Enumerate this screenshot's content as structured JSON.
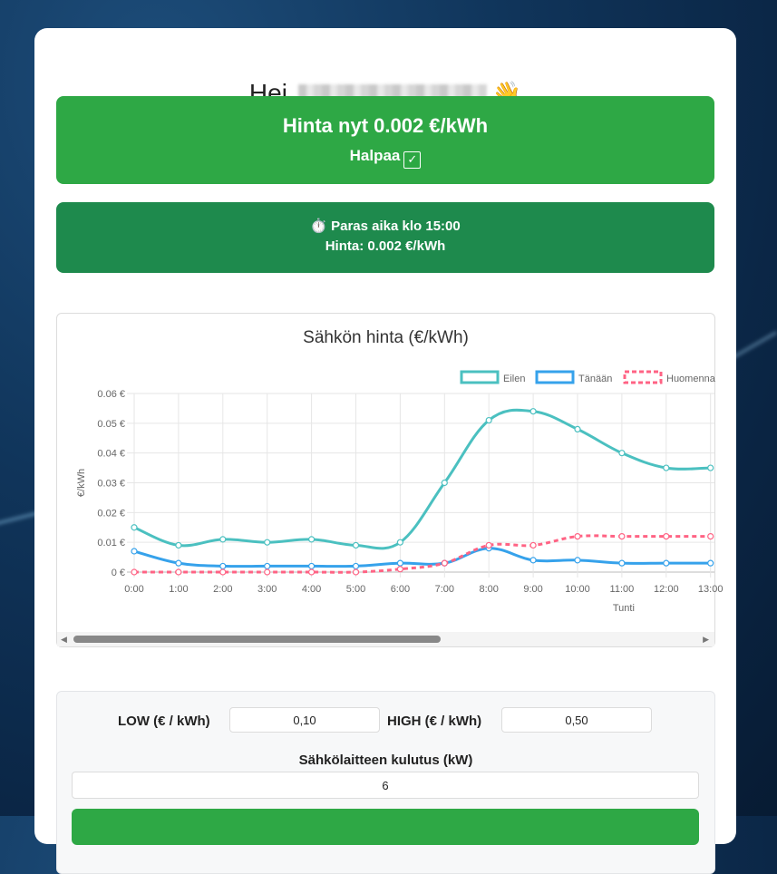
{
  "greeting": {
    "hello": "Hei,",
    "emoji": "👋"
  },
  "price": {
    "now": "Hinta nyt 0.002 €/kWh",
    "status": "Halpaa",
    "status_icon": "✓"
  },
  "best": {
    "line1": "⏱️ Paras aika klo 15:00",
    "line2": "Hinta: 0.002 €/kWh"
  },
  "chart_data": {
    "type": "line",
    "title": "Sähkön hinta (€/kWh)",
    "xlabel": "Tunti",
    "ylabel": "€/kWh",
    "ylim": [
      0,
      0.06
    ],
    "yticks": [
      "0 €",
      "0.01 €",
      "0.02 €",
      "0.03 €",
      "0.04 €",
      "0.05 €",
      "0.06 €"
    ],
    "categories": [
      "0:00",
      "1:00",
      "2:00",
      "3:00",
      "4:00",
      "5:00",
      "6:00",
      "7:00",
      "8:00",
      "9:00",
      "10:00",
      "11:00",
      "12:00",
      "13:00"
    ],
    "legend_position": "top-right",
    "grid": true,
    "series": [
      {
        "name": "Eilen",
        "color": "#4bc0c0",
        "dashed": false,
        "values": [
          0.015,
          0.009,
          0.011,
          0.01,
          0.011,
          0.009,
          0.01,
          0.03,
          0.051,
          0.054,
          0.048,
          0.04,
          0.035,
          0.035
        ]
      },
      {
        "name": "Tänään",
        "color": "#36a2eb",
        "dashed": false,
        "values": [
          0.007,
          0.003,
          0.002,
          0.002,
          0.002,
          0.002,
          0.003,
          0.003,
          0.008,
          0.004,
          0.004,
          0.003,
          0.003,
          0.003
        ]
      },
      {
        "name": "Huomenna",
        "color": "#ff6384",
        "dashed": true,
        "values": [
          0.0,
          0.0,
          0.0,
          0.0,
          0.0,
          0.0,
          0.001,
          0.003,
          0.009,
          0.009,
          0.012,
          0.012,
          0.012,
          0.012
        ]
      }
    ]
  },
  "settings": {
    "low_label": "LOW (€ / kWh)",
    "low_value": "0,10",
    "high_label": "HIGH (€ / kWh)",
    "high_value": "0,50",
    "consumption_label": "Sähkölaitteen kulutus (kW)",
    "consumption_value": "6"
  },
  "colors": {
    "cheap": "#2ea845",
    "best": "#1e8a4d"
  }
}
